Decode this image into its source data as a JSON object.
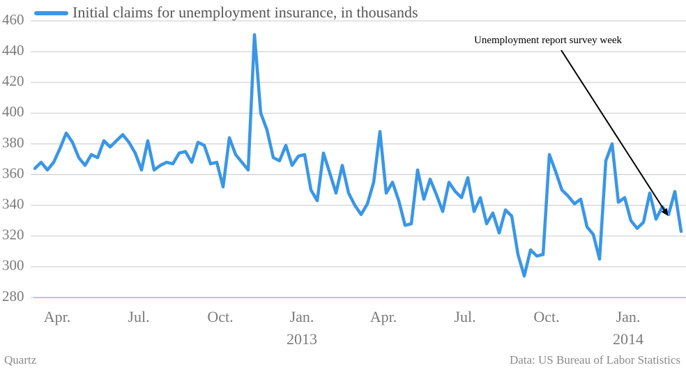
{
  "chart_data": {
    "type": "line",
    "series": [
      {
        "name": "Initial claims for unemployment insurance, in thousands",
        "color": "#3a96e6",
        "values": [
          364,
          368,
          363,
          368,
          377,
          387,
          381,
          371,
          366,
          373,
          371,
          382,
          378,
          382,
          386,
          381,
          374,
          363,
          382,
          363,
          366,
          368,
          367,
          374,
          375,
          368,
          381,
          379,
          367,
          368,
          352,
          384,
          373,
          368,
          363,
          451,
          400,
          389,
          371,
          369,
          379,
          366,
          372,
          373,
          350,
          343,
          374,
          361,
          348,
          366,
          348,
          340,
          334,
          341,
          355,
          388,
          348,
          355,
          343,
          327,
          328,
          363,
          344,
          357,
          347,
          336,
          355,
          349,
          345,
          358,
          336,
          345,
          328,
          335,
          322,
          337,
          333,
          308,
          294,
          311,
          307,
          308,
          373,
          362,
          350,
          346,
          341,
          344,
          326,
          321,
          305,
          369,
          380,
          342,
          345,
          330,
          325,
          329,
          348,
          331,
          339,
          334,
          349,
          323
        ]
      }
    ],
    "categories": [
      null,
      null,
      null,
      null,
      "Apr.",
      null,
      null,
      null,
      null,
      null,
      null,
      null,
      null,
      null,
      null,
      null,
      null,
      "Jul.",
      null,
      null,
      null,
      null,
      null,
      null,
      null,
      null,
      null,
      null,
      null,
      null,
      "Oct.",
      null,
      null,
      null,
      null,
      null,
      null,
      null,
      null,
      null,
      null,
      null,
      null,
      [
        "Jan.",
        "2013"
      ],
      null,
      null,
      null,
      null,
      null,
      null,
      null,
      null,
      null,
      null,
      null,
      null,
      "Apr.",
      null,
      null,
      null,
      null,
      null,
      null,
      null,
      null,
      null,
      null,
      null,
      null,
      "Jul.",
      null,
      null,
      null,
      null,
      null,
      null,
      null,
      null,
      null,
      null,
      null,
      null,
      "Oct.",
      null,
      null,
      null,
      null,
      null,
      null,
      null,
      null,
      null,
      null,
      null,
      null,
      [
        "Jan.",
        "2014"
      ],
      null,
      null,
      null,
      null,
      null,
      null,
      null,
      null
    ],
    "ylim": [
      280,
      460
    ],
    "yticks": [
      280,
      300,
      320,
      340,
      360,
      380,
      400,
      420,
      440,
      460
    ],
    "grid": true,
    "annotation": "Unemployment report survey week",
    "source": "Data: US Bureau of Labor Statistics",
    "credit": "Quartz"
  }
}
